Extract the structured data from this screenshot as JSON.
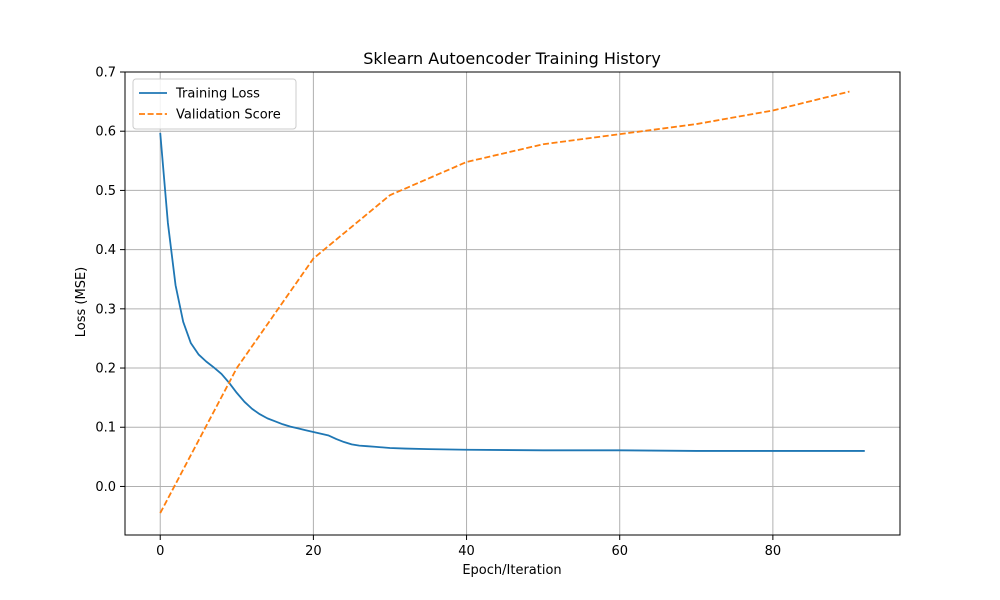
{
  "chart_data": {
    "type": "line",
    "title": "Sklearn Autoencoder Training History",
    "xlabel": "Epoch/Iteration",
    "ylabel": "Loss (MSE)",
    "xlim": [
      -4.6,
      96.6
    ],
    "ylim": [
      -0.082,
      0.7
    ],
    "xticks": [
      0,
      20,
      40,
      60,
      80
    ],
    "yticks": [
      0.0,
      0.1,
      0.2,
      0.3,
      0.4,
      0.5,
      0.6,
      0.7
    ],
    "ytick_labels": [
      "0.0",
      "0.1",
      "0.2",
      "0.3",
      "0.4",
      "0.5",
      "0.6",
      "0.7"
    ],
    "grid": true,
    "legend_position": "top-left",
    "series": [
      {
        "name": "Training Loss",
        "color": "#1f77b4",
        "style": "solid",
        "x": [
          0,
          1,
          2,
          3,
          4,
          5,
          6,
          7,
          8,
          9,
          10,
          11,
          12,
          13,
          14,
          15,
          16,
          17,
          18,
          19,
          20,
          21,
          22,
          23,
          24,
          25,
          26,
          27,
          28,
          30,
          32,
          35,
          40,
          50,
          60,
          70,
          80,
          92
        ],
        "y": [
          0.597,
          0.445,
          0.34,
          0.278,
          0.242,
          0.223,
          0.211,
          0.201,
          0.19,
          0.175,
          0.158,
          0.143,
          0.131,
          0.122,
          0.115,
          0.11,
          0.105,
          0.101,
          0.098,
          0.095,
          0.092,
          0.089,
          0.086,
          0.08,
          0.075,
          0.071,
          0.069,
          0.068,
          0.067,
          0.065,
          0.064,
          0.063,
          0.062,
          0.061,
          0.061,
          0.06,
          0.06,
          0.06
        ]
      },
      {
        "name": "Validation Score",
        "color": "#ff7f0e",
        "style": "dashed",
        "x": [
          0,
          10,
          20,
          30,
          40,
          50,
          60,
          70,
          80,
          90
        ],
        "y": [
          -0.045,
          0.2,
          0.385,
          0.492,
          0.548,
          0.578,
          0.595,
          0.612,
          0.635,
          0.667
        ]
      }
    ]
  }
}
